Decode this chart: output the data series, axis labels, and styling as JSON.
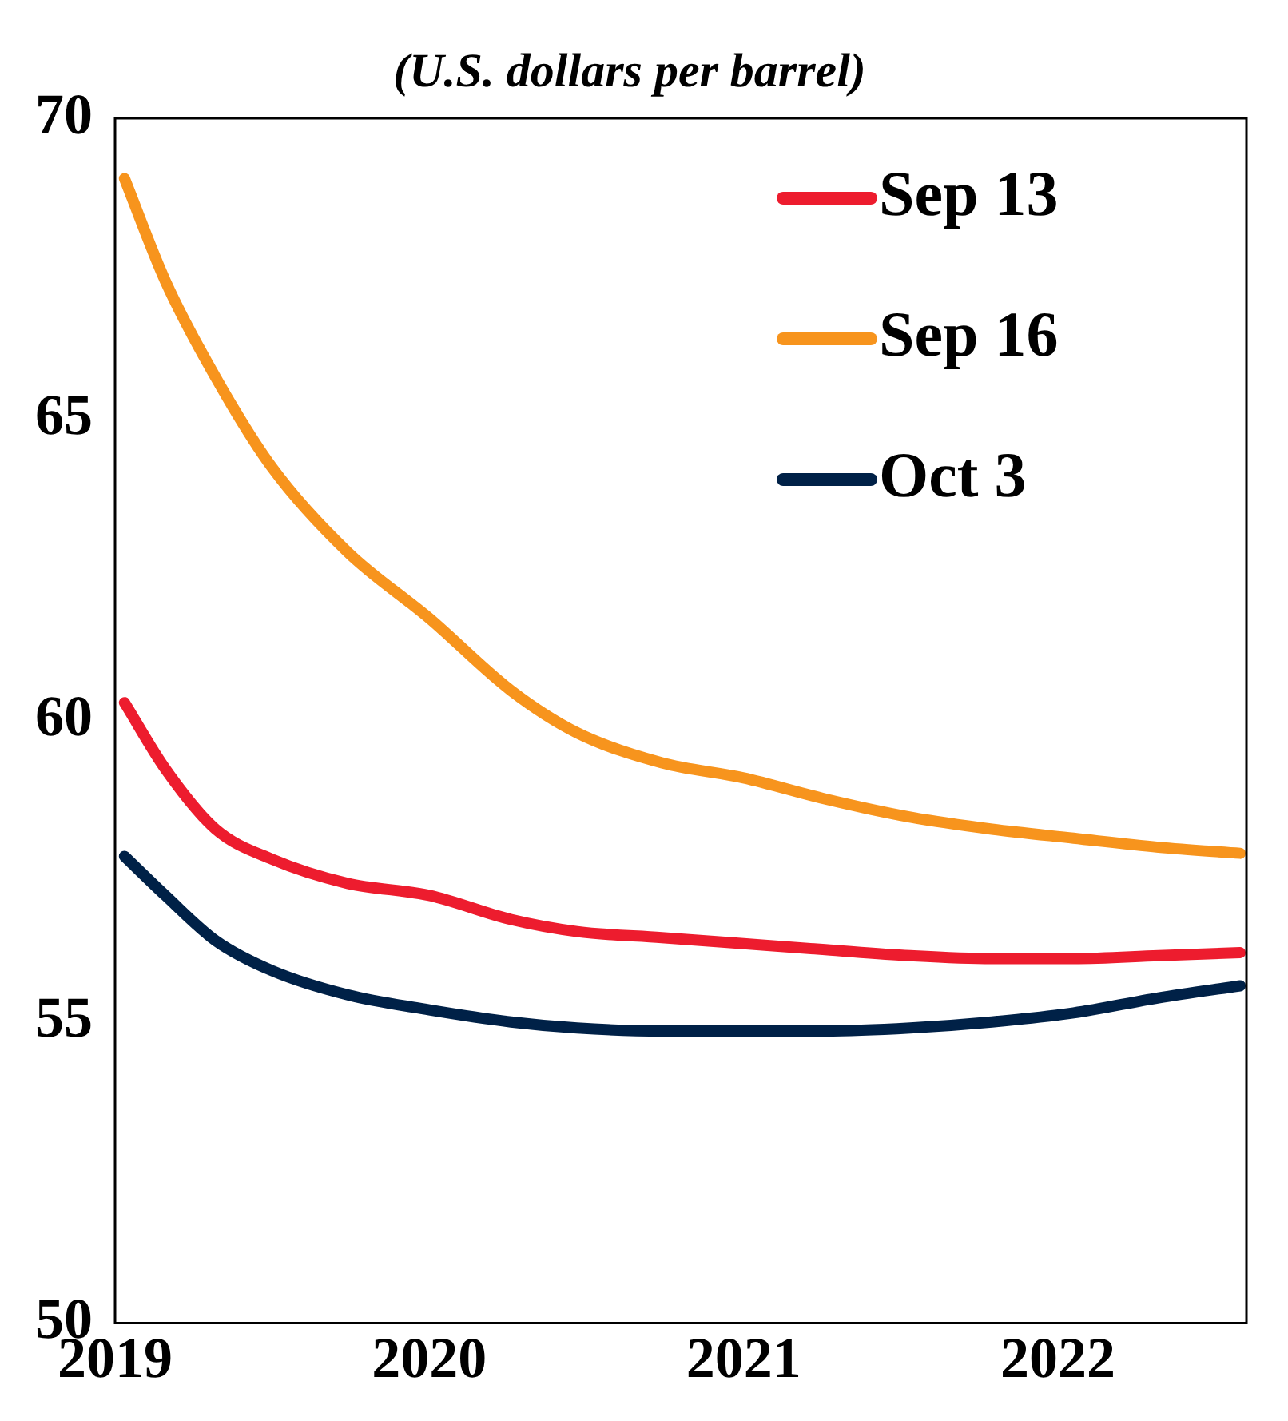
{
  "chart_data": {
    "type": "line",
    "subtitle": "(U.S. dollars per barrel)",
    "x": [
      2019.03,
      2019.16,
      2019.32,
      2019.5,
      2019.74,
      2020,
      2020.26,
      2020.47,
      2020.74,
      2021,
      2021.26,
      2021.53,
      2021.79,
      2022.05,
      2022.32,
      2022.58
    ],
    "series": [
      {
        "name": "Sep 13",
        "color": "#ed1c2e",
        "values": [
          60.3,
          59.2,
          58.2,
          57.7,
          57.3,
          57.1,
          56.7,
          56.5,
          56.4,
          56.3,
          56.2,
          56.1,
          56.05,
          56.05,
          56.1,
          56.15
        ]
      },
      {
        "name": "Sep 16",
        "color": "#f7941d",
        "values": [
          69.0,
          67.3,
          65.7,
          64.2,
          62.8,
          61.7,
          60.5,
          59.8,
          59.3,
          59.05,
          58.7,
          58.4,
          58.2,
          58.05,
          57.9,
          57.8
        ]
      },
      {
        "name": "Oct 3",
        "color": "#002147",
        "values": [
          57.75,
          57.1,
          56.35,
          55.85,
          55.45,
          55.2,
          55.0,
          54.9,
          54.85,
          54.85,
          54.85,
          54.9,
          55.0,
          55.15,
          55.4,
          55.6
        ]
      }
    ],
    "xlim": [
      2019,
      2022.6
    ],
    "xticks": [
      2019,
      2020,
      2021,
      2022
    ],
    "ylim": [
      50,
      70
    ],
    "yticks": [
      50,
      55,
      60,
      65,
      70
    ],
    "grid": false,
    "legend": "top right",
    "marker": "none",
    "line_style": "solid"
  }
}
